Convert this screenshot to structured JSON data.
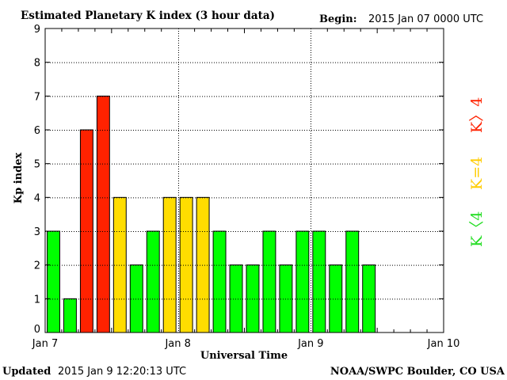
{
  "header": {
    "title": "Estimated Planetary K index (3 hour data)",
    "begin_label": "Begin:",
    "begin_value": "2015 Jan 07 0000 UTC"
  },
  "footer": {
    "updated_label": "Updated",
    "updated_value": "2015 Jan  9 12:20:13 UTC",
    "source": "NOAA/SWPC Boulder, CO USA"
  },
  "legend": {
    "high": "K〉4",
    "equal": "K=4",
    "low": "K〈4"
  },
  "colors": {
    "low": "#00ff00",
    "equal": "#ffdd00",
    "high": "#ff2200",
    "high_label": "#ff2200",
    "equal_label": "#ffcc00",
    "low_label": "#22dd22",
    "grid": "#000000"
  },
  "chart_data": {
    "type": "bar",
    "title": "Estimated Planetary K index (3 hour data)",
    "xlabel": "Universal Time",
    "ylabel": "Kp index",
    "ylim": [
      0,
      9
    ],
    "yticks": [
      "0",
      "1",
      "2",
      "3",
      "4",
      "5",
      "6",
      "7",
      "8",
      "9"
    ],
    "xlim": [
      "2015-01-07 00:00",
      "2015-01-10 00:00"
    ],
    "xticks": [
      {
        "label": "Jan 7",
        "day": 0
      },
      {
        "label": "Jan 8",
        "day": 1
      },
      {
        "label": "Jan 9",
        "day": 2
      },
      {
        "label": "Jan 10",
        "day": 3
      }
    ],
    "grid": true,
    "series": [
      {
        "times": [
          "2015-01-07 00:00",
          "2015-01-07 03:00",
          "2015-01-07 06:00",
          "2015-01-07 09:00",
          "2015-01-07 12:00",
          "2015-01-07 15:00",
          "2015-01-07 18:00",
          "2015-01-07 21:00",
          "2015-01-08 00:00",
          "2015-01-08 03:00",
          "2015-01-08 06:00",
          "2015-01-08 09:00",
          "2015-01-08 12:00",
          "2015-01-08 15:00",
          "2015-01-08 18:00",
          "2015-01-08 21:00",
          "2015-01-09 00:00",
          "2015-01-09 03:00",
          "2015-01-09 06:00",
          "2015-01-09 09:00"
        ],
        "values": [
          3,
          1,
          6,
          7,
          4,
          2,
          3,
          4,
          4,
          4,
          3,
          2,
          2,
          3,
          2,
          3,
          3,
          2,
          3,
          2
        ]
      }
    ]
  }
}
